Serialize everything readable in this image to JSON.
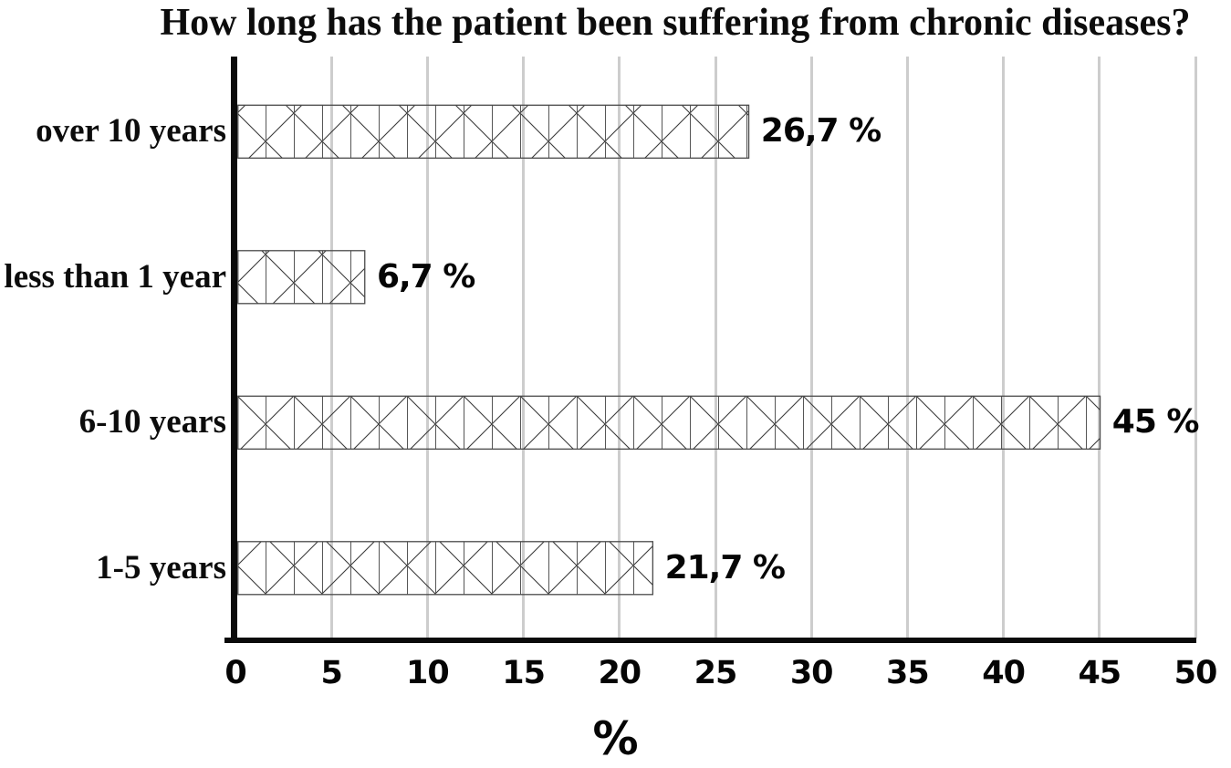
{
  "chart_data": {
    "type": "bar",
    "orientation": "horizontal",
    "title": "How long has the patient been suffering from chronic diseases?",
    "categories": [
      "over 10 years",
      "less than 1 year",
      "6-10 years",
      "1-5 years"
    ],
    "values": [
      26.7,
      6.7,
      45,
      21.7
    ],
    "value_labels": [
      "26,7 %",
      "6,7 %",
      "45 %",
      "21,7 %"
    ],
    "xlabel": "%",
    "ylabel": "",
    "xlim": [
      0,
      50
    ],
    "xticks": [
      0,
      5,
      10,
      15,
      20,
      25,
      30,
      35,
      40,
      45,
      50
    ],
    "grid": "vertical-gridlines-on",
    "legend": "none",
    "bar_fill_pattern": "diagonal-crosshatch-with-vertical-lines",
    "colors": {
      "text": "#0c0c0c",
      "axis": "#0a0a0a",
      "gridline": "#cdcdcd",
      "bar_outline": "#4a4a4a",
      "bar_pattern_line": "#3a3a3a",
      "background": "#ffffff"
    }
  }
}
